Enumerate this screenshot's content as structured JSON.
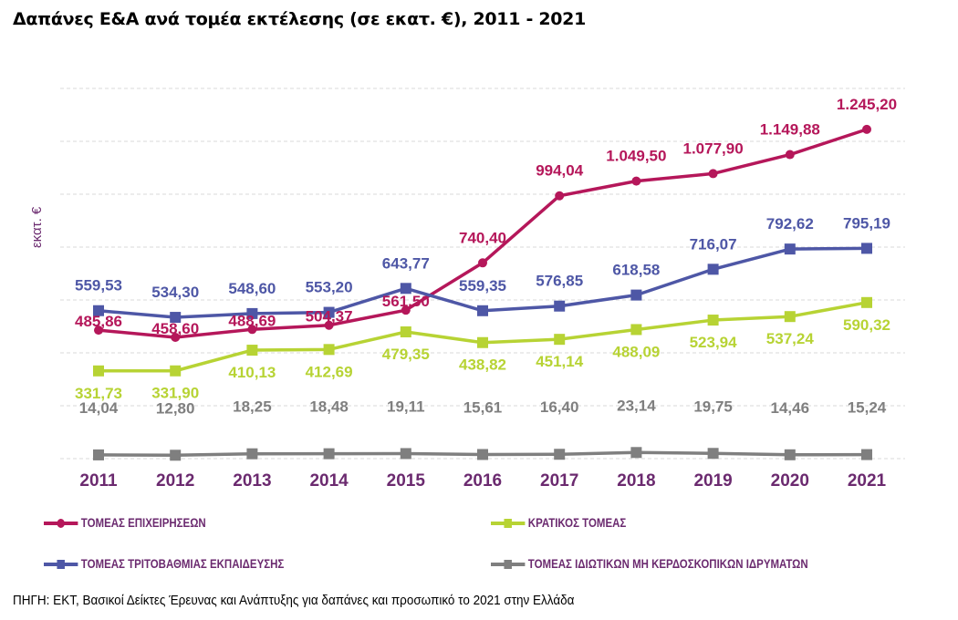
{
  "chart_data": {
    "type": "line",
    "title": "Δαπάνες Ε&Α ανά τομέα εκτέλεσης (σε εκατ. €), 2011 - 2021",
    "ylabel": "εκατ. €",
    "xlabel": "",
    "ylim": [
      0,
      1400
    ],
    "grid": true,
    "legend_placement": "bottom",
    "x": [
      "2011",
      "2012",
      "2013",
      "2014",
      "2015",
      "2016",
      "2017",
      "2018",
      "2019",
      "2020",
      "2021"
    ],
    "series": [
      {
        "name": "ΤΟΜΕΑΣ ΕΠΙΧΕΙΡΗΣΕΩΝ",
        "color": "#b5175a",
        "marker": "circle",
        "values": [
          485.86,
          458.6,
          488.69,
          504.37,
          561.5,
          740.4,
          994.04,
          1049.5,
          1077.9,
          1149.88,
          1245.2
        ],
        "labels": [
          "485,86",
          "458,60",
          "488,69",
          "504,37",
          "561,50",
          "740,40",
          "994,04",
          "1.049,50",
          "1.077,90",
          "1.149,88",
          "1.245,20"
        ]
      },
      {
        "name": "ΚΡΑΤΙΚΟΣ ΤΟΜΕΑΣ",
        "color": "#b7d334",
        "marker": "square",
        "values": [
          331.73,
          331.9,
          410.13,
          412.69,
          479.35,
          438.82,
          451.14,
          488.09,
          523.94,
          537.24,
          590.32
        ],
        "labels": [
          "331,73",
          "331,90",
          "410,13",
          "412,69",
          "479,35",
          "438,82",
          "451,14",
          "488,09",
          "523,94",
          "537,24",
          "590,32"
        ]
      },
      {
        "name": "ΤΟΜΕΑΣ ΤΡΙΤΟΒΑΘΜΙΑΣ ΕΚΠΑΙΔΕΥΣΗΣ",
        "color": "#4e57a6",
        "marker": "square",
        "values": [
          559.53,
          534.3,
          548.6,
          553.2,
          643.77,
          559.35,
          576.85,
          618.58,
          716.07,
          792.62,
          795.19
        ],
        "labels": [
          "559,53",
          "534,30",
          "548,60",
          "553,20",
          "643,77",
          "559,35",
          "576,85",
          "618,58",
          "716,07",
          "792,62",
          "795,19"
        ]
      },
      {
        "name": "ΤΟΜΕΑΣ ΙΔΙΩΤΙΚΩΝ ΜΗ ΚΕΡΔΟΣΚΟΠΙΚΩΝ ΙΔΡΥΜΑΤΩΝ",
        "color": "#7f7f7f",
        "marker": "square",
        "values": [
          14.04,
          12.8,
          18.25,
          18.48,
          19.11,
          15.61,
          16.4,
          23.14,
          19.75,
          14.46,
          15.24
        ],
        "labels": [
          "14,04",
          "12,80",
          "18,25",
          "18,48",
          "19,11",
          "15,61",
          "16,40",
          "23,14",
          "19,75",
          "14,46",
          "15,24"
        ]
      }
    ]
  },
  "source": "ΠΗΓΗ: ΕΚΤ, Βασικοί Δείκτες Έρευνας και Ανάπτυξης για δαπάνες και προσωπικό το 2021 στην Ελλάδα"
}
